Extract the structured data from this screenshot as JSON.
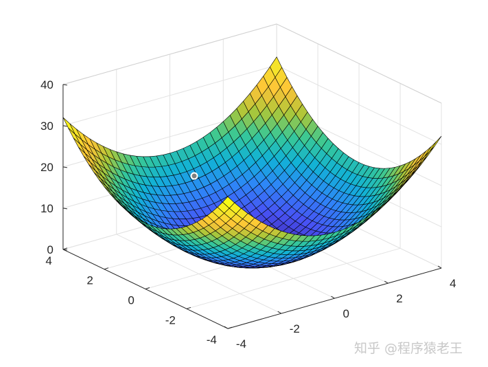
{
  "chart_data": {
    "type": "surface",
    "z_function": "x^2 + y^2",
    "x_range": [
      -4,
      4
    ],
    "y_range": [
      -4,
      4
    ],
    "grid_step": 0.25,
    "zlim": [
      0,
      40
    ],
    "x_ticks": [
      -4,
      -2,
      0,
      2,
      4
    ],
    "y_ticks": [
      -4,
      -2,
      0,
      2,
      4
    ],
    "z_ticks": [
      0,
      10,
      20,
      30,
      40
    ],
    "x_tick_labels": [
      "-4",
      "-2",
      "0",
      "2",
      "4"
    ],
    "y_tick_labels": [
      "-4",
      "-2",
      "0",
      "2",
      "4"
    ],
    "z_tick_labels": [
      "0",
      "10",
      "20",
      "30",
      "40"
    ],
    "colormap": "parula",
    "edge_color": "#000000",
    "grid": true,
    "title": "",
    "xlabel": "",
    "ylabel": "",
    "zlabel": "",
    "marker": {
      "x": -1.3,
      "y": 2.3,
      "z": 7,
      "color": "#808080"
    }
  },
  "watermark": "知乎 @程序猿老王"
}
